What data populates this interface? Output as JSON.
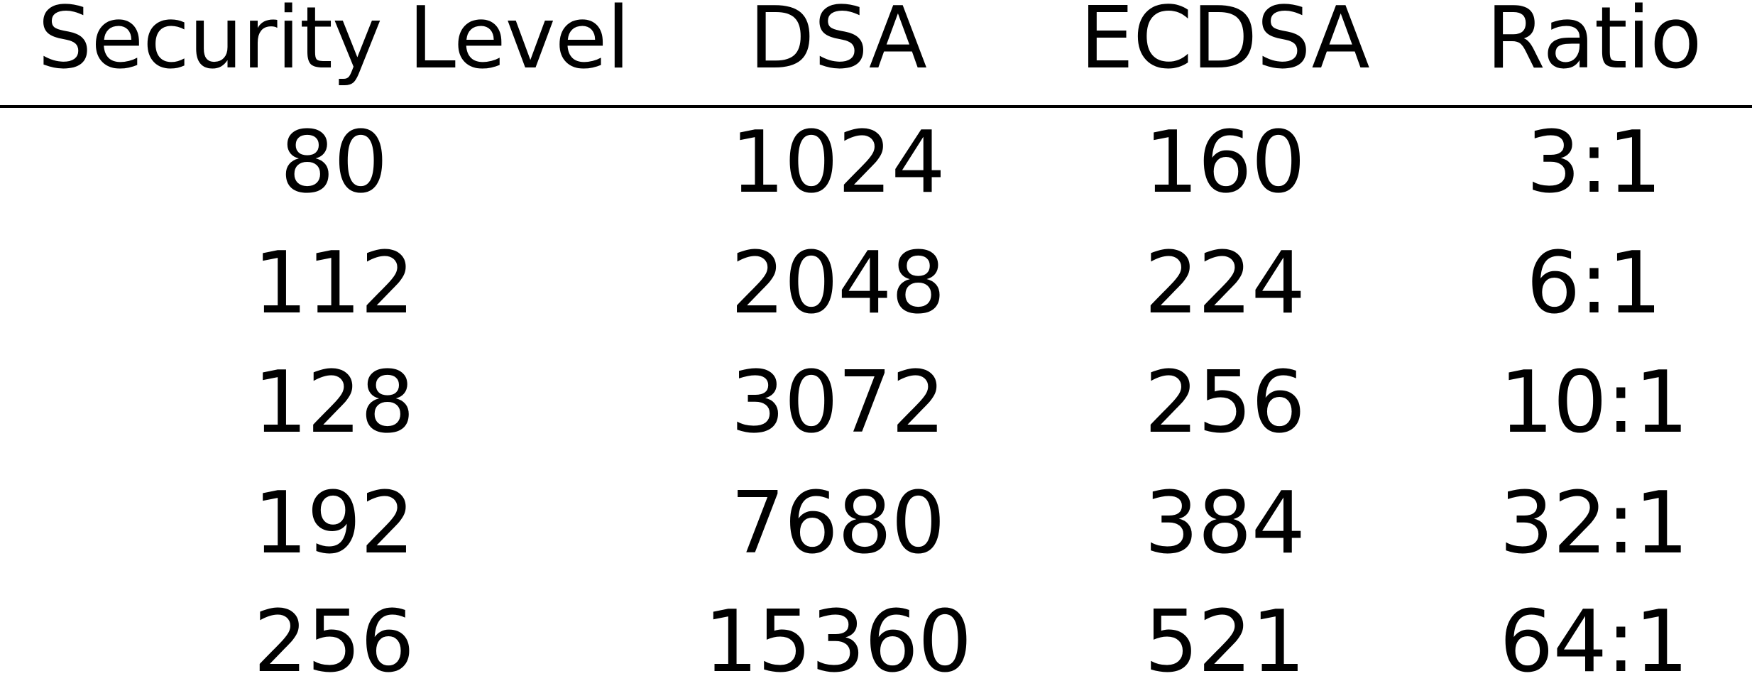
{
  "table": {
    "headers": [
      "Security Level",
      "DSA",
      "ECDSA",
      "Ratio"
    ],
    "rows": [
      [
        "80",
        "1024",
        "160",
        "3:1"
      ],
      [
        "112",
        "2048",
        "224",
        "6:1"
      ],
      [
        "128",
        "3072",
        "256",
        "10:1"
      ],
      [
        "192",
        "7680",
        "384",
        "32:1"
      ],
      [
        "256",
        "15360",
        "521",
        "64:1"
      ]
    ]
  }
}
